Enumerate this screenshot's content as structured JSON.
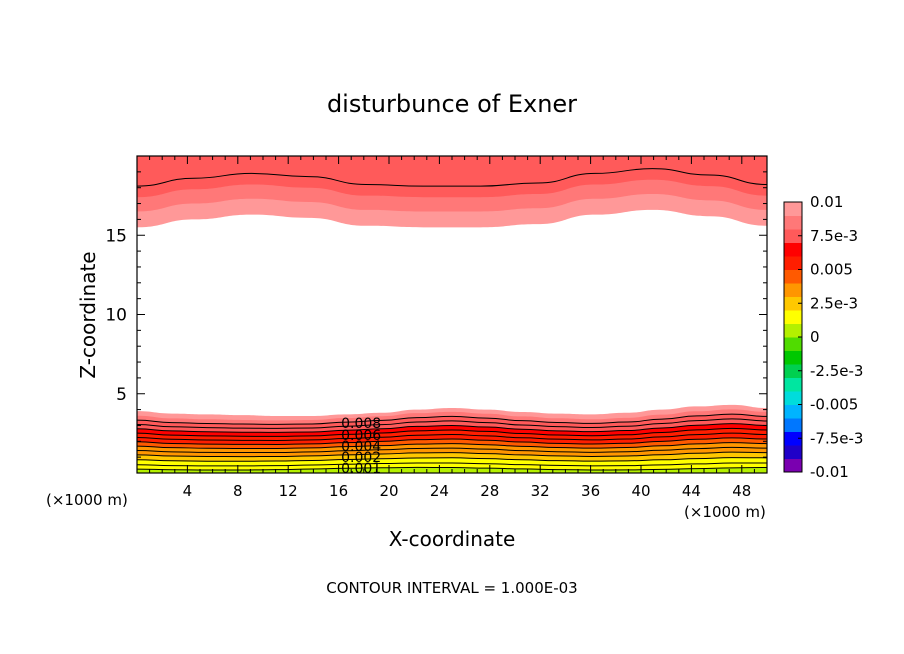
{
  "chart_data": {
    "type": "contour",
    "title": "disturbunce of Exner",
    "xlabel": "X-coordinate",
    "ylabel": "Z-coordinate",
    "x_unit_left": "(×1000 m)",
    "x_unit_right": "(×1000 m)",
    "footer": "CONTOUR INTERVAL = 1.000E-03",
    "xlim": [
      0,
      50
    ],
    "ylim": [
      0,
      20
    ],
    "x_ticks": [
      "4",
      "8",
      "12",
      "16",
      "20",
      "24",
      "28",
      "32",
      "36",
      "40",
      "44",
      "48"
    ],
    "y_ticks": [
      "5",
      "10",
      "15"
    ],
    "contour_labels": [
      "0.008",
      "0.006",
      "0.004",
      "0.002",
      "0.001"
    ],
    "colorbar": {
      "labels": [
        "0.01",
        "7.5e-3",
        "0.005",
        "2.5e-3",
        "0",
        "-2.5e-3",
        "-0.005",
        "-7.5e-3",
        "-0.01"
      ],
      "range": [
        -0.01,
        0.01
      ],
      "colors": [
        "#7a00b0",
        "#1f00c8",
        "#0000ff",
        "#0077ff",
        "#00b4ff",
        "#00dcdc",
        "#00e6a0",
        "#00d050",
        "#00c800",
        "#50dc00",
        "#b4f000",
        "#ffff00",
        "#ffc800",
        "#ff9600",
        "#ff5a00",
        "#ff1e00",
        "#ff0000",
        "#ff5a5a",
        "#ff7878",
        "#ff9898"
      ]
    },
    "bottom_layer_levels": [
      0.001,
      0.002,
      0.003,
      0.004,
      0.005,
      0.006,
      0.007,
      0.008,
      0.009
    ],
    "bottom_layer_top_z": [
      3.9,
      3.75,
      3.7,
      3.65,
      3.6,
      3.6,
      3.7,
      3.8,
      4.0,
      4.1,
      4.0,
      3.85,
      3.75,
      3.7,
      3.8,
      4.0,
      4.2,
      4.3,
      4.1
    ],
    "top_layer_edge_z": [
      15.5,
      16.0,
      16.3,
      16.1,
      15.6,
      15.5,
      15.5,
      15.7,
      16.3,
      16.6,
      16.2,
      15.6
    ],
    "top_layer_levels": [
      0.009,
      0.01
    ]
  }
}
